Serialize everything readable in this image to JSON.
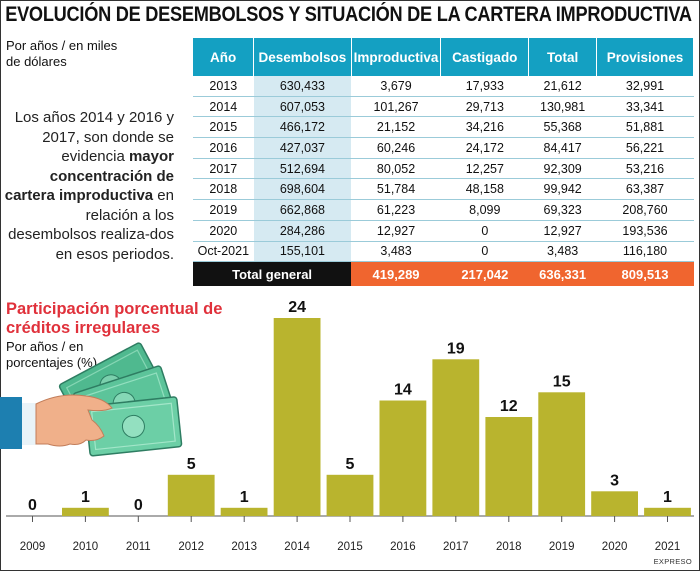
{
  "title": "EVOLUCIÓN DE DESEMBOLSOS Y SITUACIÓN DE LA CARTERA IMPRODUCTIVA",
  "table_note": [
    "Por años / en miles",
    "de dólares"
  ],
  "paragraph": {
    "p1": "Los años 2014 y 2016 y 2017, son donde se evidencia ",
    "bold": "mayor concentración de cartera improductiva",
    "p2": " en relación a los desembolsos realiza-dos en esos periodos."
  },
  "table": {
    "headers": [
      "Año",
      "Desembolsos",
      "Improductiva",
      "Castigado",
      "Total",
      "Provisiones"
    ],
    "rows": [
      [
        "2013",
        "630,433",
        "3,679",
        "17,933",
        "21,612",
        "32,991"
      ],
      [
        "2014",
        "607,053",
        "101,267",
        "29,713",
        "130,981",
        "33,341"
      ],
      [
        "2015",
        "466,172",
        "21,152",
        "34,216",
        "55,368",
        "51,881"
      ],
      [
        "2016",
        "427,037",
        "60,246",
        "24,172",
        "84,417",
        "56,221"
      ],
      [
        "2017",
        "512,694",
        "80,052",
        "12,257",
        "92,309",
        "53,216"
      ],
      [
        "2018",
        "698,604",
        "51,784",
        "48,158",
        "99,942",
        "63,387"
      ],
      [
        "2019",
        "662,868",
        "61,223",
        "8,099",
        "69,323",
        "208,760"
      ],
      [
        "2020",
        "284,286",
        "12,927",
        "0",
        "12,927",
        "193,536"
      ],
      [
        "Oct-2021",
        "155,101",
        "3,483",
        "0",
        "3,483",
        "116,180"
      ]
    ],
    "total": [
      "Total general",
      "419,289",
      "217,042",
      "636,331",
      "809,513"
    ]
  },
  "chart_data": {
    "type": "bar",
    "title": "Participación porcentual de créditos irregulares",
    "subtitle": "Por años / en porcentajes (%)",
    "categories": [
      "2009",
      "2010",
      "2011",
      "2012",
      "2013",
      "2014",
      "2015",
      "2016",
      "2017",
      "2018",
      "2019",
      "2020",
      "2021"
    ],
    "values": [
      0,
      1,
      0,
      5,
      1,
      24,
      5,
      14,
      19,
      12,
      15,
      3,
      1
    ],
    "ylim": [
      0,
      24
    ],
    "bar_color": "#b9b42e"
  },
  "credit": "EXPRESO"
}
